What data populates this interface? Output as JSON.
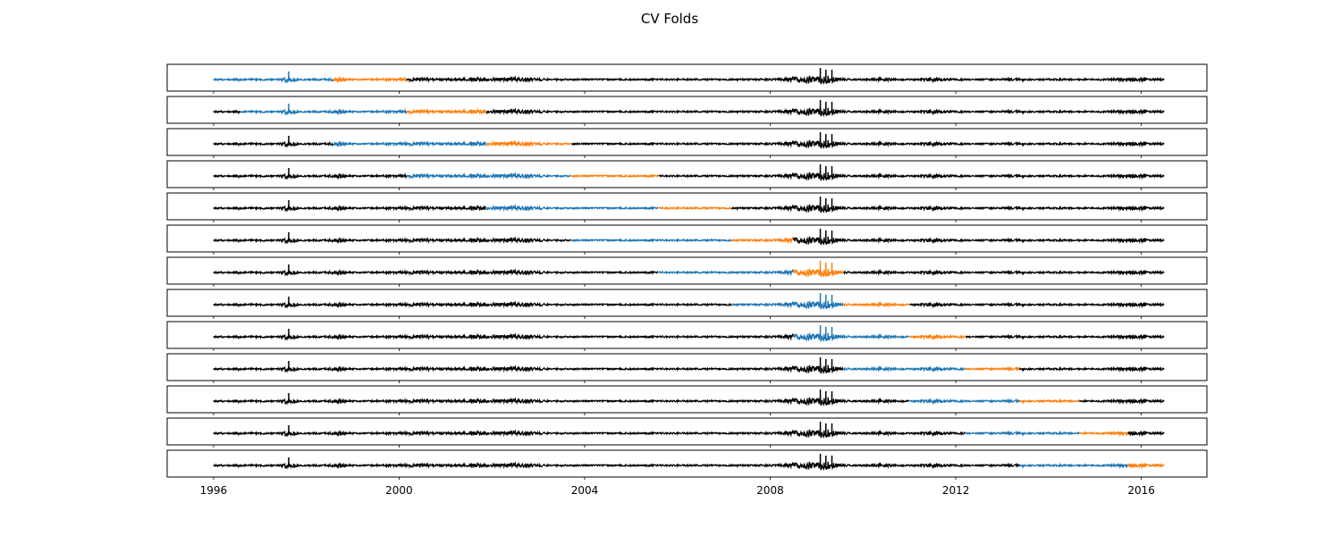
{
  "chart_data": {
    "type": "line",
    "title": "CV Folds",
    "xlabel": "",
    "ylabel": "",
    "x_range": [
      "1995-01-01",
      "2017-06-01"
    ],
    "data_range": [
      "1996-01-01",
      "2016-06-30"
    ],
    "x_ticks": [
      "1996",
      "2000",
      "2004",
      "2008",
      "2012",
      "2016"
    ],
    "grid": false,
    "legend": "none",
    "colors": {
      "rest": "#000000",
      "train": "#1f77b4",
      "test": "#ff7f0e"
    },
    "folds": [
      {
        "fold": 1,
        "train": [
          "1996-01-01",
          "1998-08-01"
        ],
        "test": [
          "1998-08-01",
          "2000-03-01"
        ]
      },
      {
        "fold": 2,
        "train": [
          "1996-08-01",
          "2000-03-01"
        ],
        "test": [
          "2000-03-01",
          "2001-11-15"
        ]
      },
      {
        "fold": 3,
        "train": [
          "1998-08-01",
          "2001-11-15"
        ],
        "test": [
          "2001-11-15",
          "2003-09-15"
        ]
      },
      {
        "fold": 4,
        "train": [
          "2000-03-01",
          "2003-09-15"
        ],
        "test": [
          "2003-09-15",
          "2005-08-01"
        ]
      },
      {
        "fold": 5,
        "train": [
          "2001-11-15",
          "2005-08-01"
        ],
        "test": [
          "2005-08-01",
          "2007-03-01"
        ]
      },
      {
        "fold": 6,
        "train": [
          "2003-09-15",
          "2007-03-01"
        ],
        "test": [
          "2007-03-01",
          "2008-07-01"
        ]
      },
      {
        "fold": 7,
        "train": [
          "2005-08-01",
          "2008-07-01"
        ],
        "test": [
          "2008-07-01",
          "2009-08-01"
        ]
      },
      {
        "fold": 8,
        "train": [
          "2007-03-01",
          "2009-08-01"
        ],
        "test": [
          "2009-08-01",
          "2011-01-01"
        ]
      },
      {
        "fold": 9,
        "train": [
          "2008-07-01",
          "2011-01-01"
        ],
        "test": [
          "2011-01-01",
          "2012-03-15"
        ]
      },
      {
        "fold": 10,
        "train": [
          "2009-08-01",
          "2012-03-15"
        ],
        "test": [
          "2012-03-15",
          "2013-05-15"
        ]
      },
      {
        "fold": 11,
        "train": [
          "2011-01-01",
          "2013-05-15"
        ],
        "test": [
          "2013-05-15",
          "2014-09-01"
        ]
      },
      {
        "fold": 12,
        "train": [
          "2012-03-15",
          "2014-09-01"
        ],
        "test": [
          "2014-09-01",
          "2015-09-15"
        ]
      },
      {
        "fold": 13,
        "train": [
          "2013-05-15",
          "2015-09-15"
        ],
        "test": [
          "2015-09-15",
          "2016-06-30"
        ]
      }
    ]
  }
}
